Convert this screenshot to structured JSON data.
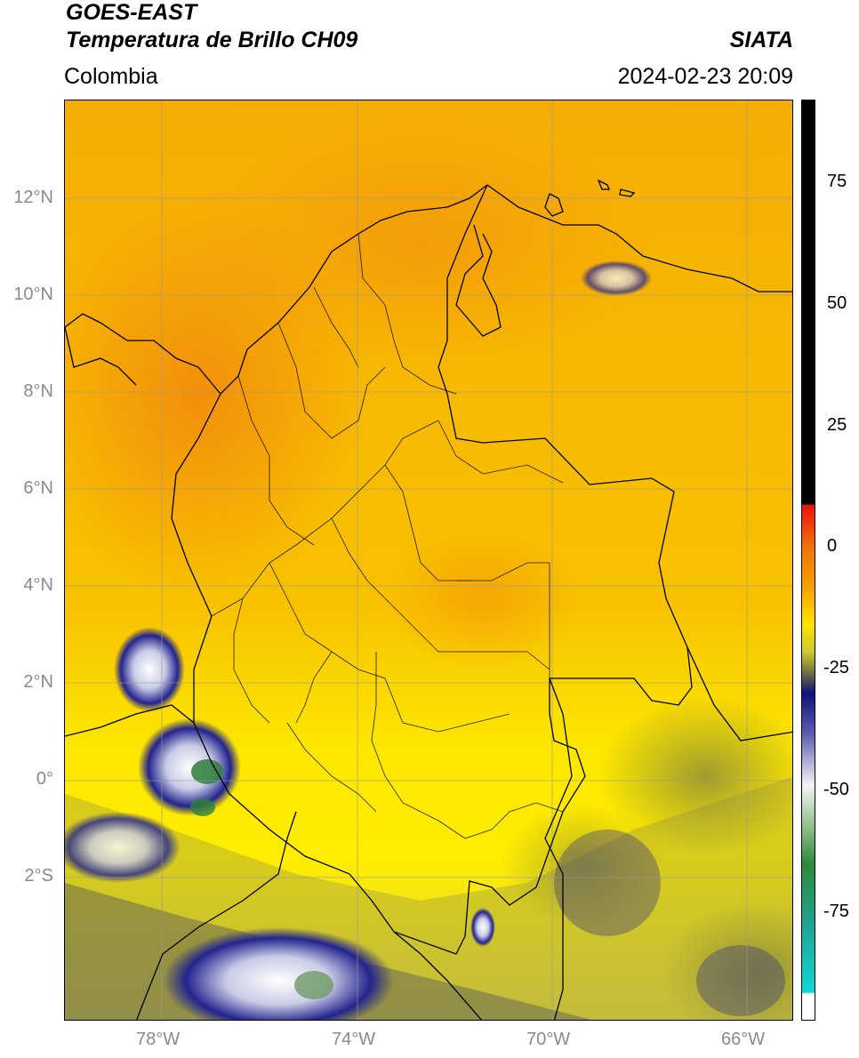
{
  "header": {
    "title_line1": "GOES-EAST",
    "title_line2": "Temperatura de Brillo CH09",
    "region": "Colombia",
    "source": "SIATA",
    "datetime": "2024-02-23 20:09"
  },
  "map": {
    "lat_ticks": [
      "12°N",
      "10°N",
      "8°N",
      "6°N",
      "4°N",
      "2°N",
      "0°",
      "2°S"
    ],
    "lon_ticks": [
      "78°W",
      "74°W",
      "70°W",
      "66°W"
    ]
  },
  "colorbar": {
    "ticks": [
      "75",
      "50",
      "25",
      "0",
      "-25",
      "-50",
      "-75"
    ],
    "colors": {
      "black": "#000000",
      "red": "#e8120c",
      "orange": "#f5a000",
      "yellow": "#ffe600",
      "olive": "#9a9a28",
      "navy": "#10107a",
      "white": "#f4f4f4",
      "green": "#2f8a3a",
      "cyan": "#12d6d6"
    }
  }
}
